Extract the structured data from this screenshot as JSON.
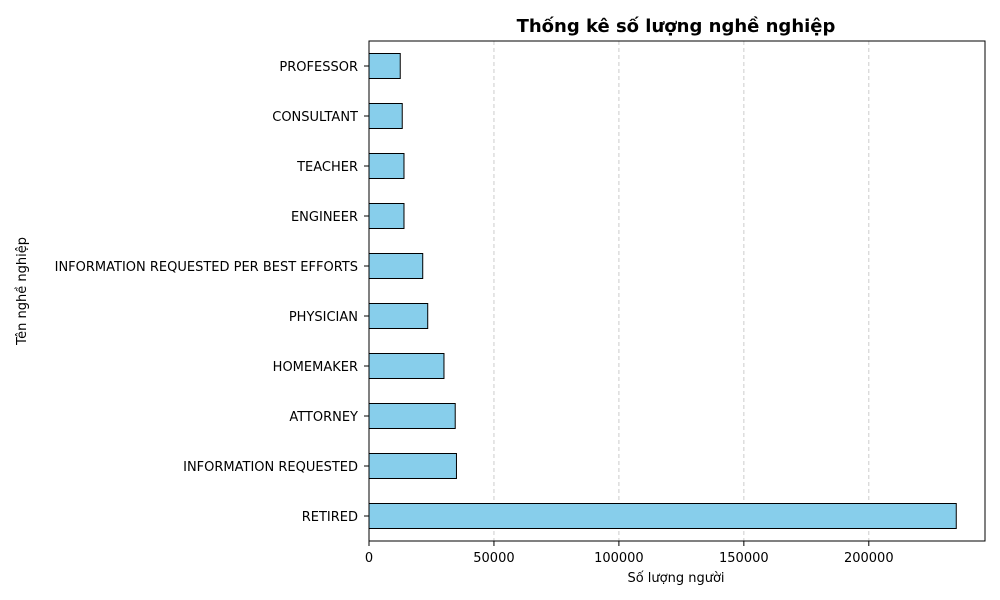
{
  "chart_data": {
    "type": "bar",
    "orientation": "horizontal",
    "title": "Thống kê số lượng nghề nghiệp",
    "xlabel": "Số lượng người",
    "ylabel": "Tên nghề nghiệp",
    "categories": [
      "RETIRED",
      "INFORMATION REQUESTED",
      "ATTORNEY",
      "HOMEMAKER",
      "PHYSICIAN",
      "INFORMATION REQUESTED PER BEST EFFORTS",
      "ENGINEER",
      "TEACHER",
      "CONSULTANT",
      "PROFESSOR"
    ],
    "values": [
      235000,
      35000,
      34500,
      30000,
      23500,
      21500,
      14000,
      14000,
      13300,
      12500
    ],
    "xlim": [
      0,
      246500
    ],
    "xticks": [
      0,
      50000,
      100000,
      150000,
      200000
    ],
    "grid": "x-dashed",
    "bar_color": "#87ceeb",
    "edge_color": "#000000"
  }
}
